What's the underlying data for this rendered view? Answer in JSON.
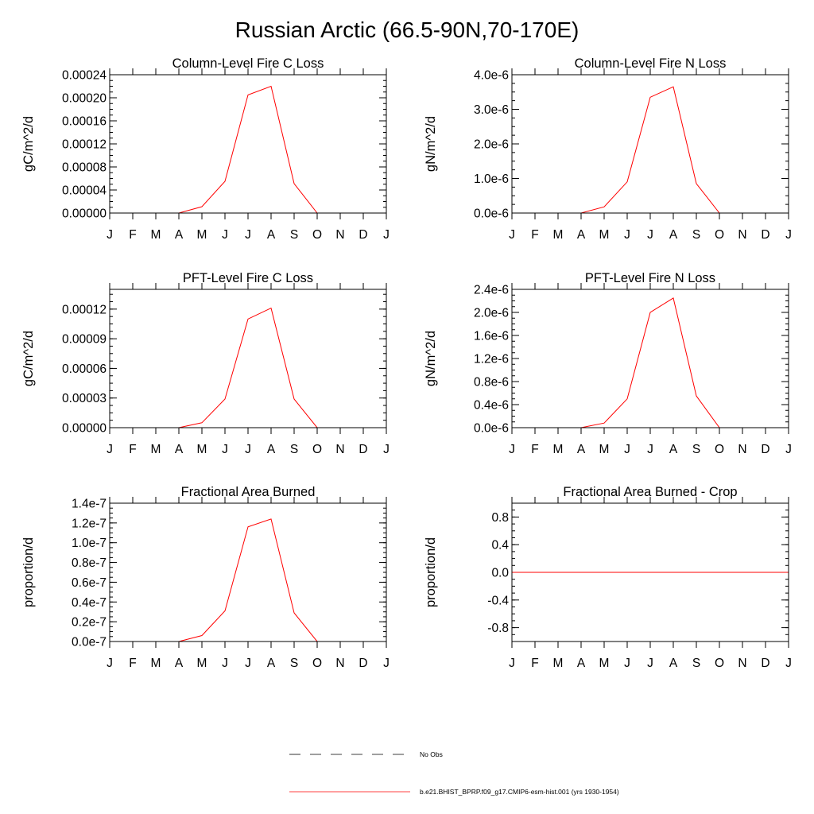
{
  "figure": {
    "title": "Russian Arctic (66.5-90N,70-170E)",
    "colors": {
      "model": "#ff0000",
      "obs": "#000000",
      "frame": "#000000"
    }
  },
  "legend": {
    "placement": "bottom-center",
    "entries": [
      {
        "label": "No Obs",
        "style": "dashed",
        "color": "#000000"
      },
      {
        "label": "b.e21.BHIST_BPRP.f09_g17.CMIP6-esm-hist.001 (yrs 1930-1954)",
        "style": "solid",
        "color": "#ff0000"
      }
    ]
  },
  "chart_data": [
    {
      "type": "line",
      "title": "Column-Level Fire C Loss",
      "ylabel": "gC/m^2/d",
      "x": [
        "J",
        "F",
        "M",
        "A",
        "M",
        "J",
        "J",
        "A",
        "S",
        "O",
        "N",
        "D",
        "J"
      ],
      "ylim": [
        0,
        0.00024
      ],
      "yticks": [
        0,
        4e-05,
        8e-05,
        0.00012,
        0.00016,
        0.0002,
        0.00024
      ],
      "ytick_labels": [
        "0.00000",
        "0.00004",
        "0.00008",
        "0.00012",
        "0.00016",
        "0.00020",
        "0.00024"
      ],
      "series": [
        {
          "values": [
            0,
            0,
            0,
            0,
            1.1e-05,
            5.5e-05,
            0.000205,
            0.00022,
            5.1e-05,
            0,
            0,
            0,
            0
          ]
        }
      ]
    },
    {
      "type": "line",
      "title": "Column-Level Fire N Loss",
      "ylabel": "gN/m^2/d",
      "x": [
        "J",
        "F",
        "M",
        "A",
        "M",
        "J",
        "J",
        "A",
        "S",
        "O",
        "N",
        "D",
        "J"
      ],
      "ylim": [
        0,
        4e-06
      ],
      "yticks": [
        0,
        1e-06,
        2e-06,
        3e-06,
        4e-06
      ],
      "ytick_labels": [
        "0.0e-6",
        "1.0e-6",
        "2.0e-6",
        "3.0e-6",
        "4.0e-6"
      ],
      "series": [
        {
          "values": [
            0,
            0,
            0,
            0,
            1.8e-07,
            9e-07,
            3.35e-06,
            3.65e-06,
            8.5e-07,
            0,
            0,
            0,
            0
          ]
        }
      ]
    },
    {
      "type": "line",
      "title": "PFT-Level Fire C Loss",
      "ylabel": "gC/m^2/d",
      "x": [
        "J",
        "F",
        "M",
        "A",
        "M",
        "J",
        "J",
        "A",
        "S",
        "O",
        "N",
        "D",
        "J"
      ],
      "ylim": [
        0,
        0.00014
      ],
      "yticks": [
        0,
        3e-05,
        6e-05,
        9e-05,
        0.00012
      ],
      "ytick_labels": [
        "0.00000",
        "0.00003",
        "0.00006",
        "0.00009",
        "0.00012"
      ],
      "series": [
        {
          "values": [
            0,
            0,
            0,
            0,
            5e-06,
            2.9e-05,
            0.00011,
            0.000121,
            2.9e-05,
            0,
            0,
            0,
            0
          ]
        }
      ]
    },
    {
      "type": "line",
      "title": "PFT-Level Fire N Loss",
      "ylabel": "gN/m^2/d",
      "x": [
        "J",
        "F",
        "M",
        "A",
        "M",
        "J",
        "J",
        "A",
        "S",
        "O",
        "N",
        "D",
        "J"
      ],
      "ylim": [
        0,
        2.4e-06
      ],
      "yticks": [
        0,
        4e-07,
        8e-07,
        1.2e-06,
        1.6e-06,
        2e-06,
        2.4e-06
      ],
      "ytick_labels": [
        "0.0e-6",
        "0.4e-6",
        "0.8e-6",
        "1.2e-6",
        "1.6e-6",
        "2.0e-6",
        "2.4e-6"
      ],
      "series": [
        {
          "values": [
            0,
            0,
            0,
            0,
            8e-08,
            5e-07,
            2e-06,
            2.25e-06,
            5.5e-07,
            0,
            0,
            0,
            0
          ]
        }
      ]
    },
    {
      "type": "line",
      "title": "Fractional Area Burned",
      "ylabel": "proportion/d",
      "x": [
        "J",
        "F",
        "M",
        "A",
        "M",
        "J",
        "J",
        "A",
        "S",
        "O",
        "N",
        "D",
        "J"
      ],
      "ylim": [
        0,
        1.4e-07
      ],
      "yticks": [
        0,
        2e-08,
        4e-08,
        6e-08,
        8e-08,
        1e-07,
        1.2e-07,
        1.4e-07
      ],
      "ytick_labels": [
        "0.0e-7",
        "0.2e-7",
        "0.4e-7",
        "0.6e-7",
        "0.8e-7",
        "1.0e-7",
        "1.2e-7",
        "1.4e-7"
      ],
      "series": [
        {
          "values": [
            0,
            0,
            0,
            0,
            6e-09,
            3.1e-08,
            1.16e-07,
            1.24e-07,
            2.9e-08,
            0,
            0,
            0,
            0
          ]
        }
      ]
    },
    {
      "type": "line",
      "title": "Fractional Area Burned - Crop",
      "ylabel": "proportion/d",
      "x": [
        "J",
        "F",
        "M",
        "A",
        "M",
        "J",
        "J",
        "A",
        "S",
        "O",
        "N",
        "D",
        "J"
      ],
      "ylim": [
        -1.0,
        1.0
      ],
      "yticks": [
        -0.8,
        -0.4,
        0.0,
        0.4,
        0.8
      ],
      "ytick_labels": [
        "-0.8",
        "-0.4",
        "0.0",
        "0.4",
        "0.8"
      ],
      "series": [
        {
          "values": [
            0,
            0,
            0,
            0,
            0,
            0,
            0,
            0,
            0,
            0,
            0,
            0,
            0
          ]
        }
      ]
    }
  ]
}
